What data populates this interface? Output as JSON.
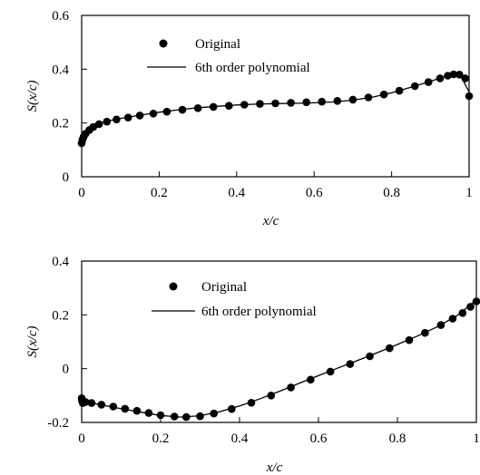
{
  "chart_data": [
    {
      "type": "scatter",
      "xlabel": "x/c",
      "ylabel": "S(x/c)",
      "xlim": [
        0,
        1
      ],
      "ylim": [
        0,
        0.6
      ],
      "xticks": [
        "0",
        "0.2",
        "0.4",
        "0.6",
        "0.8",
        "1"
      ],
      "yticks": [
        "0",
        "0.2",
        "0.4",
        "0.6"
      ],
      "legend_position": "top-left",
      "series": [
        {
          "name": "Original",
          "style": "markers",
          "points": [
            [
              0.0,
              0.125
            ],
            [
              0.002,
              0.138
            ],
            [
              0.005,
              0.148
            ],
            [
              0.01,
              0.16
            ],
            [
              0.02,
              0.174
            ],
            [
              0.03,
              0.185
            ],
            [
              0.045,
              0.196
            ],
            [
              0.065,
              0.205
            ],
            [
              0.09,
              0.213
            ],
            [
              0.12,
              0.22
            ],
            [
              0.15,
              0.228
            ],
            [
              0.185,
              0.235
            ],
            [
              0.22,
              0.242
            ],
            [
              0.26,
              0.249
            ],
            [
              0.3,
              0.255
            ],
            [
              0.34,
              0.26
            ],
            [
              0.38,
              0.264
            ],
            [
              0.42,
              0.268
            ],
            [
              0.46,
              0.271
            ],
            [
              0.5,
              0.273
            ],
            [
              0.54,
              0.275
            ],
            [
              0.58,
              0.277
            ],
            [
              0.62,
              0.279
            ],
            [
              0.66,
              0.282
            ],
            [
              0.7,
              0.287
            ],
            [
              0.74,
              0.295
            ],
            [
              0.78,
              0.306
            ],
            [
              0.82,
              0.32
            ],
            [
              0.86,
              0.337
            ],
            [
              0.895,
              0.352
            ],
            [
              0.925,
              0.366
            ],
            [
              0.945,
              0.376
            ],
            [
              0.96,
              0.381
            ],
            [
              0.975,
              0.38
            ],
            [
              0.99,
              0.366
            ],
            [
              1.0,
              0.3
            ]
          ]
        },
        {
          "name": "6th order polynomial",
          "style": "line",
          "points": [
            [
              0.0,
              0.128
            ],
            [
              0.01,
              0.16
            ],
            [
              0.03,
              0.188
            ],
            [
              0.06,
              0.205
            ],
            [
              0.1,
              0.217
            ],
            [
              0.15,
              0.229
            ],
            [
              0.2,
              0.24
            ],
            [
              0.25,
              0.249
            ],
            [
              0.3,
              0.257
            ],
            [
              0.35,
              0.262
            ],
            [
              0.4,
              0.267
            ],
            [
              0.45,
              0.27
            ],
            [
              0.5,
              0.272
            ],
            [
              0.55,
              0.273
            ],
            [
              0.6,
              0.275
            ],
            [
              0.65,
              0.278
            ],
            [
              0.7,
              0.285
            ],
            [
              0.75,
              0.296
            ],
            [
              0.8,
              0.312
            ],
            [
              0.85,
              0.333
            ],
            [
              0.9,
              0.355
            ],
            [
              0.93,
              0.369
            ],
            [
              0.96,
              0.378
            ],
            [
              0.98,
              0.37
            ],
            [
              1.0,
              0.315
            ]
          ]
        }
      ]
    },
    {
      "type": "scatter",
      "xlabel": "x/c",
      "ylabel": "S(x/c)",
      "xlim": [
        0,
        1
      ],
      "ylim": [
        -0.2,
        0.4
      ],
      "xticks": [
        "0",
        "0.2",
        "0.4",
        "0.6",
        "0.8",
        "1"
      ],
      "yticks": [
        "-0.2",
        "0",
        "0.2",
        "0.4"
      ],
      "legend_position": "top-left",
      "series": [
        {
          "name": "Original",
          "style": "markers",
          "points": [
            [
              0.0,
              -0.11
            ],
            [
              0.001,
              -0.12
            ],
            [
              0.003,
              -0.128
            ],
            [
              0.01,
              -0.124
            ],
            [
              0.025,
              -0.128
            ],
            [
              0.05,
              -0.134
            ],
            [
              0.08,
              -0.141
            ],
            [
              0.11,
              -0.149
            ],
            [
              0.14,
              -0.157
            ],
            [
              0.17,
              -0.165
            ],
            [
              0.2,
              -0.173
            ],
            [
              0.235,
              -0.178
            ],
            [
              0.265,
              -0.18
            ],
            [
              0.3,
              -0.177
            ],
            [
              0.335,
              -0.167
            ],
            [
              0.38,
              -0.15
            ],
            [
              0.43,
              -0.127
            ],
            [
              0.48,
              -0.1
            ],
            [
              0.53,
              -0.07
            ],
            [
              0.58,
              -0.041
            ],
            [
              0.63,
              -0.011
            ],
            [
              0.68,
              0.017
            ],
            [
              0.73,
              0.046
            ],
            [
              0.78,
              0.076
            ],
            [
              0.83,
              0.106
            ],
            [
              0.87,
              0.133
            ],
            [
              0.91,
              0.162
            ],
            [
              0.94,
              0.186
            ],
            [
              0.965,
              0.207
            ],
            [
              0.985,
              0.23
            ],
            [
              1.0,
              0.25
            ]
          ]
        },
        {
          "name": "6th order polynomial",
          "style": "line",
          "points": [
            [
              0.0,
              -0.12
            ],
            [
              0.05,
              -0.135
            ],
            [
              0.1,
              -0.149
            ],
            [
              0.15,
              -0.162
            ],
            [
              0.2,
              -0.174
            ],
            [
              0.25,
              -0.18
            ],
            [
              0.3,
              -0.175
            ],
            [
              0.35,
              -0.16
            ],
            [
              0.4,
              -0.139
            ],
            [
              0.45,
              -0.113
            ],
            [
              0.5,
              -0.085
            ],
            [
              0.55,
              -0.055
            ],
            [
              0.6,
              -0.026
            ],
            [
              0.65,
              0.003
            ],
            [
              0.7,
              0.031
            ],
            [
              0.75,
              0.06
            ],
            [
              0.8,
              0.09
            ],
            [
              0.85,
              0.121
            ],
            [
              0.9,
              0.155
            ],
            [
              0.95,
              0.196
            ],
            [
              1.0,
              0.255
            ]
          ]
        }
      ]
    }
  ]
}
